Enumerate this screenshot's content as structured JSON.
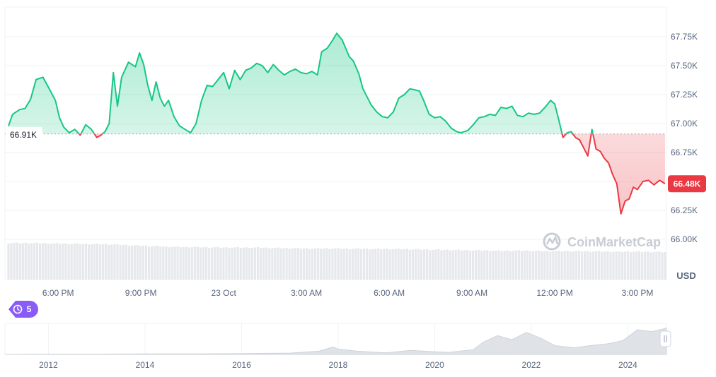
{
  "chart_data": {
    "type": "area",
    "currency": "USD",
    "reference_value_label": "66.91K",
    "reference_value": 66910,
    "current_value_label": "66.48K",
    "current_value": 66480,
    "ylim": [
      65800,
      68000
    ],
    "y_ticks": [
      {
        "value": 67750,
        "label": "67.75K"
      },
      {
        "value": 67500,
        "label": "67.50K"
      },
      {
        "value": 67250,
        "label": "67.25K"
      },
      {
        "value": 67000,
        "label": "67.00K"
      },
      {
        "value": 66750,
        "label": "66.75K"
      },
      {
        "value": 66250,
        "label": "66.25K"
      },
      {
        "value": 66000,
        "label": "66.00K"
      }
    ],
    "x_ticks": [
      {
        "hour": 18,
        "label": "6:00 PM"
      },
      {
        "hour": 21,
        "label": "9:00 PM"
      },
      {
        "hour": 24,
        "label": "23 Oct"
      },
      {
        "hour": 27,
        "label": "3:00 AM"
      },
      {
        "hour": 30,
        "label": "6:00 AM"
      },
      {
        "hour": 33,
        "label": "9:00 AM"
      },
      {
        "hour": 36,
        "label": "12:00 PM"
      },
      {
        "hour": 39,
        "label": "3:00 PM"
      }
    ],
    "x_range_hours": [
      16.2,
      40.0
    ],
    "price_series": [
      [
        16.2,
        66980
      ],
      [
        16.35,
        67080
      ],
      [
        16.6,
        67120
      ],
      [
        16.8,
        67130
      ],
      [
        17.0,
        67210
      ],
      [
        17.2,
        67380
      ],
      [
        17.45,
        67400
      ],
      [
        17.7,
        67290
      ],
      [
        17.9,
        67200
      ],
      [
        18.05,
        67050
      ],
      [
        18.2,
        66970
      ],
      [
        18.4,
        66920
      ],
      [
        18.6,
        66950
      ],
      [
        18.8,
        66900
      ],
      [
        19.0,
        66990
      ],
      [
        19.2,
        66950
      ],
      [
        19.4,
        66880
      ],
      [
        19.55,
        66900
      ],
      [
        19.7,
        66930
      ],
      [
        19.85,
        67000
      ],
      [
        20.0,
        67440
      ],
      [
        20.15,
        67150
      ],
      [
        20.3,
        67400
      ],
      [
        20.55,
        67530
      ],
      [
        20.8,
        67490
      ],
      [
        20.95,
        67610
      ],
      [
        21.1,
        67510
      ],
      [
        21.25,
        67330
      ],
      [
        21.4,
        67200
      ],
      [
        21.55,
        67360
      ],
      [
        21.7,
        67220
      ],
      [
        21.85,
        67150
      ],
      [
        22.0,
        67200
      ],
      [
        22.2,
        67060
      ],
      [
        22.4,
        66980
      ],
      [
        22.6,
        66950
      ],
      [
        22.8,
        66920
      ],
      [
        23.0,
        67000
      ],
      [
        23.2,
        67200
      ],
      [
        23.4,
        67330
      ],
      [
        23.6,
        67320
      ],
      [
        23.8,
        67380
      ],
      [
        24.0,
        67440
      ],
      [
        24.2,
        67300
      ],
      [
        24.4,
        67460
      ],
      [
        24.6,
        67380
      ],
      [
        24.8,
        67460
      ],
      [
        25.0,
        67480
      ],
      [
        25.2,
        67520
      ],
      [
        25.4,
        67500
      ],
      [
        25.6,
        67440
      ],
      [
        25.8,
        67510
      ],
      [
        26.0,
        67460
      ],
      [
        26.2,
        67420
      ],
      [
        26.4,
        67450
      ],
      [
        26.6,
        67470
      ],
      [
        26.8,
        67440
      ],
      [
        27.0,
        67430
      ],
      [
        27.2,
        67450
      ],
      [
        27.4,
        67420
      ],
      [
        27.55,
        67620
      ],
      [
        27.75,
        67650
      ],
      [
        27.95,
        67720
      ],
      [
        28.1,
        67780
      ],
      [
        28.3,
        67720
      ],
      [
        28.55,
        67580
      ],
      [
        28.7,
        67540
      ],
      [
        28.9,
        67430
      ],
      [
        29.05,
        67300
      ],
      [
        29.2,
        67230
      ],
      [
        29.35,
        67160
      ],
      [
        29.55,
        67100
      ],
      [
        29.75,
        67060
      ],
      [
        29.95,
        67050
      ],
      [
        30.15,
        67100
      ],
      [
        30.35,
        67220
      ],
      [
        30.55,
        67250
      ],
      [
        30.75,
        67300
      ],
      [
        30.95,
        67290
      ],
      [
        31.1,
        67280
      ],
      [
        31.25,
        67200
      ],
      [
        31.45,
        67080
      ],
      [
        31.65,
        67050
      ],
      [
        31.85,
        67060
      ],
      [
        32.05,
        67020
      ],
      [
        32.25,
        66960
      ],
      [
        32.45,
        66930
      ],
      [
        32.6,
        66920
      ],
      [
        32.85,
        66940
      ],
      [
        33.05,
        66990
      ],
      [
        33.25,
        67050
      ],
      [
        33.45,
        67060
      ],
      [
        33.65,
        67080
      ],
      [
        33.85,
        67070
      ],
      [
        34.05,
        67140
      ],
      [
        34.25,
        67130
      ],
      [
        34.45,
        67150
      ],
      [
        34.65,
        67070
      ],
      [
        34.85,
        67060
      ],
      [
        35.05,
        67090
      ],
      [
        35.25,
        67080
      ],
      [
        35.45,
        67090
      ],
      [
        35.65,
        67140
      ],
      [
        35.85,
        67200
      ],
      [
        36.0,
        67170
      ],
      [
        36.15,
        67030
      ],
      [
        36.3,
        66880
      ],
      [
        36.45,
        66920
      ],
      [
        36.6,
        66930
      ],
      [
        36.75,
        66880
      ],
      [
        36.9,
        66860
      ],
      [
        37.05,
        66790
      ],
      [
        37.2,
        66720
      ],
      [
        37.35,
        66950
      ],
      [
        37.5,
        66780
      ],
      [
        37.65,
        66760
      ],
      [
        37.8,
        66700
      ],
      [
        37.95,
        66660
      ],
      [
        38.1,
        66560
      ],
      [
        38.25,
        66480
      ],
      [
        38.4,
        66220
      ],
      [
        38.55,
        66330
      ],
      [
        38.7,
        66350
      ],
      [
        38.85,
        66450
      ],
      [
        39.0,
        66430
      ],
      [
        39.2,
        66500
      ],
      [
        39.4,
        66510
      ],
      [
        39.6,
        66470
      ],
      [
        39.8,
        66510
      ],
      [
        40.0,
        66480
      ]
    ],
    "volume_series": [
      [
        16.2,
        0.8
      ],
      [
        17.0,
        0.8
      ],
      [
        18.0,
        0.79
      ],
      [
        19.0,
        0.78
      ],
      [
        20.0,
        0.77
      ],
      [
        21.0,
        0.74
      ],
      [
        22.0,
        0.72
      ],
      [
        23.0,
        0.71
      ],
      [
        24.0,
        0.7
      ],
      [
        25.0,
        0.7
      ],
      [
        26.0,
        0.69
      ],
      [
        27.0,
        0.68
      ],
      [
        28.0,
        0.68
      ],
      [
        29.0,
        0.67
      ],
      [
        30.0,
        0.67
      ],
      [
        31.0,
        0.66
      ],
      [
        32.0,
        0.65
      ],
      [
        33.0,
        0.64
      ],
      [
        34.0,
        0.63
      ],
      [
        35.0,
        0.63
      ],
      [
        36.0,
        0.62
      ],
      [
        37.0,
        0.62
      ],
      [
        38.0,
        0.61
      ],
      [
        39.0,
        0.61
      ],
      [
        40.0,
        0.6
      ]
    ],
    "overview_series": [
      [
        2011.1,
        0.0
      ],
      [
        2012.0,
        0.01
      ],
      [
        2013.0,
        0.01
      ],
      [
        2014.0,
        0.02
      ],
      [
        2015.0,
        0.02
      ],
      [
        2016.0,
        0.03
      ],
      [
        2017.0,
        0.05
      ],
      [
        2017.6,
        0.12
      ],
      [
        2017.9,
        0.28
      ],
      [
        2018.0,
        0.2
      ],
      [
        2018.4,
        0.12
      ],
      [
        2019.0,
        0.06
      ],
      [
        2019.5,
        0.15
      ],
      [
        2020.0,
        0.1
      ],
      [
        2020.3,
        0.08
      ],
      [
        2020.8,
        0.18
      ],
      [
        2021.0,
        0.45
      ],
      [
        2021.3,
        0.7
      ],
      [
        2021.6,
        0.55
      ],
      [
        2021.9,
        0.82
      ],
      [
        2022.2,
        0.6
      ],
      [
        2022.5,
        0.32
      ],
      [
        2022.9,
        0.25
      ],
      [
        2023.2,
        0.32
      ],
      [
        2023.6,
        0.4
      ],
      [
        2023.9,
        0.52
      ],
      [
        2024.2,
        0.92
      ],
      [
        2024.5,
        0.85
      ],
      [
        2024.8,
        0.98
      ]
    ],
    "overview_x_range": [
      2011.1,
      2024.8
    ],
    "overview_ticks": [
      {
        "year": 2012,
        "label": "2012"
      },
      {
        "year": 2014,
        "label": "2014"
      },
      {
        "year": 2016,
        "label": "2016"
      },
      {
        "year": 2018,
        "label": "2018"
      },
      {
        "year": 2020,
        "label": "2020"
      },
      {
        "year": 2022,
        "label": "2022"
      },
      {
        "year": 2024,
        "label": "2024"
      }
    ]
  },
  "watermark_text": "CoinMarketCap",
  "history_badge_count": "5",
  "colors": {
    "up": "#16c784",
    "down": "#ea3943",
    "grid": "#eff2f5",
    "axis_text": "#58667e",
    "volume": "#e6e8ec",
    "history_badge": "#8a5cf6"
  },
  "icons": {
    "history_badge": "history-clock-icon",
    "watermark_logo": "coinmarketcap-logo-icon",
    "range_handle": "drag-handle-icon"
  }
}
